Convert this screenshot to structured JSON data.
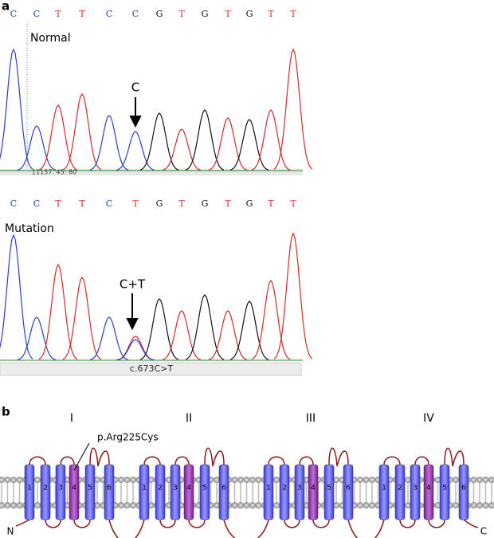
{
  "base_colors": {
    "C": "#2a3fc8",
    "T": "#d42a2a",
    "G": "#111111"
  },
  "panel_a": {
    "label": "a",
    "normal": {
      "bases": [
        "C",
        "C",
        "T",
        "T",
        "C",
        "C",
        "G",
        "T",
        "G",
        "T",
        "G",
        "T",
        "T"
      ],
      "label": "Normal",
      "arrow_label": "C",
      "position": "11157. 45: 80"
    },
    "mutation": {
      "bases": [
        "C",
        "C",
        "T",
        "T",
        "C",
        "T",
        "G",
        "T",
        "G",
        "T",
        "G",
        "T",
        "T"
      ],
      "label": "Mutation",
      "arrow_label": "C+T",
      "variant": "c.673C>T"
    }
  },
  "panel_b": {
    "label": "b",
    "variant": "p.Arg225Cys",
    "n_terminus": "N",
    "c_terminus": "C",
    "domains": [
      {
        "label": "I",
        "segments": [
          "1",
          "2",
          "3",
          "4",
          "5",
          "6"
        ]
      },
      {
        "label": "II",
        "segments": [
          "1",
          "2",
          "3",
          "4",
          "5",
          "6"
        ]
      },
      {
        "label": "III",
        "segments": [
          "1",
          "2",
          "3",
          "4",
          "5",
          "6"
        ]
      },
      {
        "label": "IV",
        "segments": [
          "1",
          "2",
          "3",
          "4",
          "5",
          "6"
        ]
      }
    ]
  }
}
